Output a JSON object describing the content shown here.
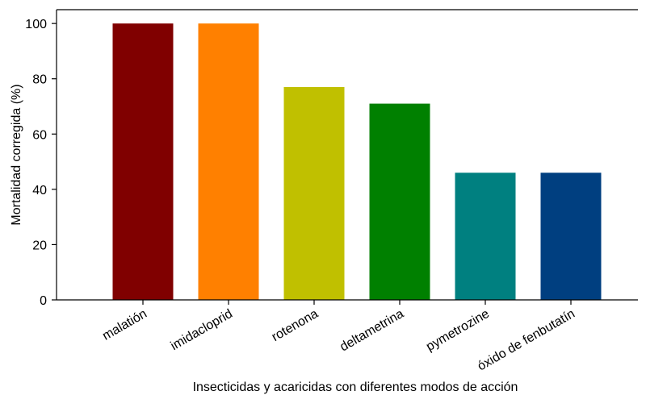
{
  "chart_data": {
    "type": "bar",
    "categories": [
      "malatión",
      "imidacloprid",
      "rotenona",
      "deltametrina",
      "pymetrozine",
      "óxido de fenbutatín"
    ],
    "values": [
      100,
      100,
      77,
      71,
      46,
      46
    ],
    "colors": [
      "#800000",
      "#ff8000",
      "#c0c000",
      "#008000",
      "#008080",
      "#003f80"
    ],
    "title": "",
    "xlabel": "Insecticidas y acaricidas con diferentes modos de acción",
    "ylabel": "Mortalidad corregida (%)",
    "ylim": [
      0,
      105
    ],
    "yticks": [
      0,
      20,
      40,
      60,
      80,
      100
    ],
    "grid": false,
    "legend": "none"
  }
}
